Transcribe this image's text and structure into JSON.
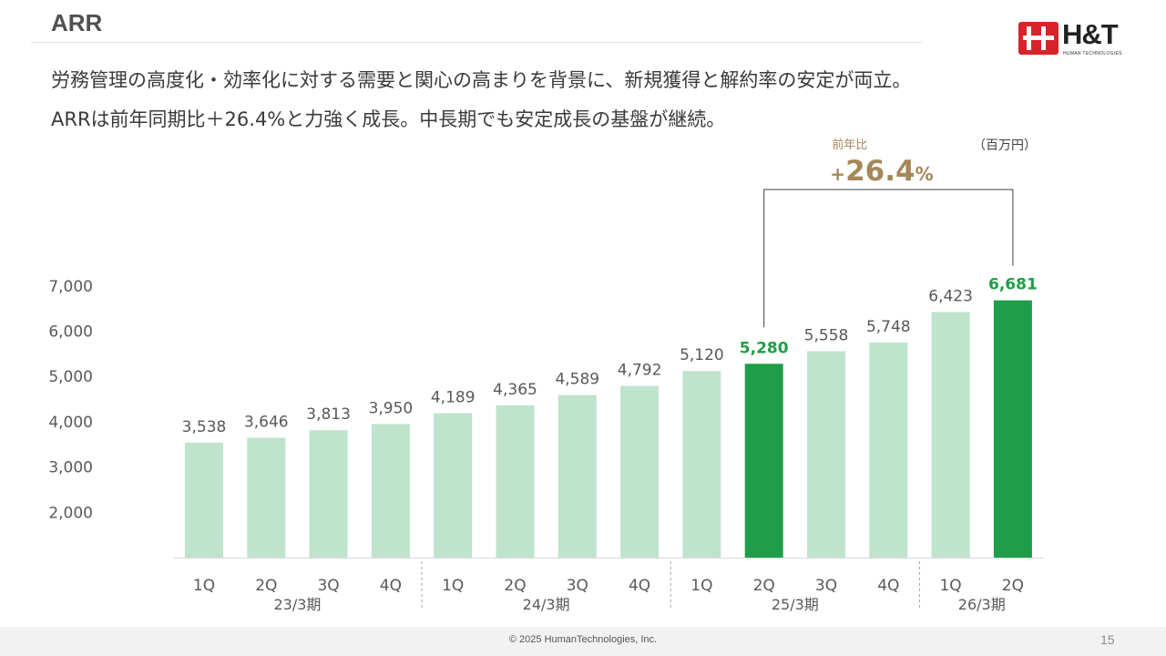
{
  "header": {
    "title": "ARR",
    "logo_text": "H&T",
    "logo_subtext": "HUMAN TECHNOLOGIES"
  },
  "lead": {
    "line1": "労務管理の高度化・効率化に対する需要と関心の高まりを背景に、新規獲得と解約率の安定が両立。",
    "line2": "ARRは前年同期比＋26.4%と力強く成長。中長期でも安定成長の基盤が継続。"
  },
  "chart_data": {
    "type": "bar",
    "unit_label": "（百万円）",
    "growth_caption": "前年比",
    "growth_value": "+26.4%",
    "growth_from_index": 9,
    "growth_to_index": 13,
    "ylim": [
      1000,
      7000
    ],
    "y_ticks": [
      2000,
      3000,
      4000,
      5000,
      6000,
      7000
    ],
    "y_tick_labels": [
      "2,000",
      "3,000",
      "4,000",
      "5,000",
      "6,000",
      "7,000"
    ],
    "categories": [
      "1Q",
      "2Q",
      "3Q",
      "4Q",
      "1Q",
      "2Q",
      "3Q",
      "4Q",
      "1Q",
      "2Q",
      "3Q",
      "4Q",
      "1Q",
      "2Q"
    ],
    "values": [
      3538,
      3646,
      3813,
      3950,
      4189,
      4365,
      4589,
      4792,
      5120,
      5280,
      5558,
      5748,
      6423,
      6681
    ],
    "value_labels": [
      "3,538",
      "3,646",
      "3,813",
      "3,950",
      "4,189",
      "4,365",
      "4,589",
      "4,792",
      "5,120",
      "5,280",
      "5,558",
      "5,748",
      "6,423",
      "6,681"
    ],
    "highlight_indices": [
      9,
      13
    ],
    "groups": [
      {
        "label": "23/3期",
        "start": 0,
        "end": 3
      },
      {
        "label": "24/3期",
        "start": 4,
        "end": 7
      },
      {
        "label": "25/3期",
        "start": 8,
        "end": 11
      },
      {
        "label": "26/3期",
        "start": 12,
        "end": 13
      }
    ],
    "colors": {
      "bar": "#bfe3cd",
      "highlight": "#1e9e48",
      "growth": "#a6875a",
      "axis_text": "#595959"
    }
  },
  "footer": {
    "copyright": "© 2025  HumanTechnologies, Inc.",
    "page_number": "15"
  }
}
